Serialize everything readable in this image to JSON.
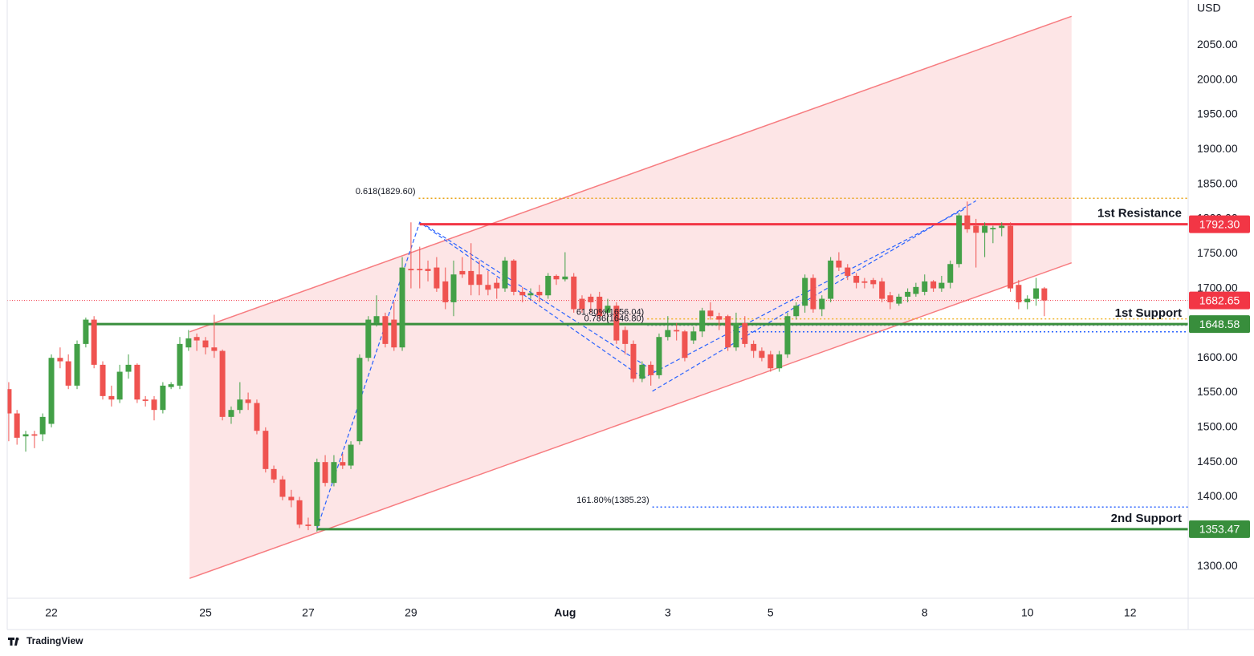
{
  "brand": "TradingView",
  "chart_data": {
    "type": "candlestick",
    "currency": "USD",
    "x": [
      21.17,
      21.33,
      21.5,
      21.67,
      21.83,
      22,
      22.17,
      22.33,
      22.5,
      22.67,
      22.83,
      23,
      23.17,
      23.33,
      23.5,
      23.67,
      23.83,
      24,
      24.17,
      24.33,
      24.5,
      24.67,
      24.83,
      25,
      25.17,
      25.33,
      25.5,
      25.67,
      25.83,
      26,
      26.17,
      26.33,
      26.5,
      26.67,
      26.83,
      27,
      27.17,
      27.33,
      27.5,
      27.67,
      27.83,
      28,
      28.17,
      28.33,
      28.5,
      28.67,
      28.83,
      29,
      29.17,
      29.33,
      29.5,
      29.67,
      29.83,
      30,
      30.17,
      30.33,
      30.5,
      30.67,
      30.83,
      31,
      31.17,
      31.33,
      31.5,
      31.67,
      31.83,
      32,
      32.17,
      32.33,
      32.5,
      32.67,
      32.83,
      33,
      33.17,
      33.33,
      33.5,
      33.67,
      33.83,
      34,
      34.17,
      34.33,
      34.5,
      34.67,
      34.83,
      35,
      35.17,
      35.33,
      35.5,
      35.67,
      35.83,
      36,
      36.17,
      36.33,
      36.5,
      36.67,
      36.83,
      37,
      37.17,
      37.33,
      37.5,
      37.67,
      37.83,
      38,
      38.17,
      38.33,
      38.5,
      38.67,
      38.83,
      39,
      39.17,
      39.33,
      39.5,
      39.67,
      39.83,
      40,
      40.17,
      40.33,
      40.5,
      40.67,
      40.83,
      41,
      41.17,
      41.33
    ],
    "open": [
      1555,
      1520,
      1487,
      1490,
      1490,
      1505,
      1600,
      1595,
      1560,
      1620,
      1655,
      1590,
      1545,
      1540,
      1580,
      1590,
      1540,
      1540,
      1525,
      1558,
      1560,
      1615,
      1630,
      1625,
      1615,
      1610,
      1515,
      1525,
      1540,
      1535,
      1495,
      1440,
      1425,
      1400,
      1395,
      1360,
      1358,
      1450,
      1420,
      1450,
      1445,
      1480,
      1600,
      1650,
      1660,
      1655,
      1615,
      1728,
      1728,
      1728,
      1730,
      1710,
      1680,
      1725,
      1725,
      1720,
      1705,
      1708,
      1700,
      1740,
      1695,
      1690,
      1695,
      1690,
      1718,
      1713,
      1717,
      1685,
      1688,
      1688,
      1665,
      1675,
      1640,
      1620,
      1570,
      1590,
      1575,
      1630,
      1640,
      1638,
      1625,
      1638,
      1668,
      1660,
      1660,
      1615,
      1650,
      1620,
      1610,
      1605,
      1585,
      1605,
      1660,
      1675,
      1715,
      1670,
      1685,
      1740,
      1730,
      1718,
      1710,
      1712,
      1710,
      1690,
      1678,
      1688,
      1692,
      1695,
      1710,
      1700,
      1708,
      1735,
      1805,
      1790,
      1780,
      1785,
      1787,
      1790,
      1705,
      1680,
      1685,
      1700
    ],
    "high": [
      1565,
      1525,
      1495,
      1495,
      1520,
      1605,
      1615,
      1605,
      1625,
      1658,
      1660,
      1595,
      1560,
      1590,
      1605,
      1592,
      1545,
      1545,
      1565,
      1565,
      1630,
      1640,
      1635,
      1630,
      1662,
      1612,
      1530,
      1565,
      1550,
      1540,
      1500,
      1445,
      1430,
      1410,
      1400,
      1370,
      1455,
      1460,
      1460,
      1462,
      1480,
      1605,
      1660,
      1690,
      1665,
      1680,
      1745,
      1795,
      1760,
      1740,
      1745,
      1730,
      1740,
      1745,
      1765,
      1740,
      1725,
      1715,
      1745,
      1742,
      1702,
      1700,
      1705,
      1722,
      1720,
      1752,
      1722,
      1690,
      1692,
      1695,
      1685,
      1680,
      1645,
      1625,
      1595,
      1595,
      1635,
      1660,
      1650,
      1640,
      1645,
      1672,
      1680,
      1665,
      1662,
      1665,
      1660,
      1625,
      1615,
      1610,
      1610,
      1665,
      1680,
      1720,
      1720,
      1690,
      1745,
      1752,
      1735,
      1722,
      1715,
      1715,
      1715,
      1695,
      1692,
      1700,
      1708,
      1720,
      1712,
      1718,
      1740,
      1808,
      1825,
      1800,
      1795,
      1790,
      1795,
      1795,
      1712,
      1690,
      1715,
      1702
    ],
    "low": [
      1480,
      1475,
      1465,
      1470,
      1480,
      1500,
      1585,
      1555,
      1555,
      1615,
      1585,
      1540,
      1530,
      1535,
      1570,
      1535,
      1530,
      1510,
      1520,
      1555,
      1555,
      1610,
      1610,
      1605,
      1600,
      1510,
      1505,
      1520,
      1525,
      1490,
      1435,
      1420,
      1395,
      1385,
      1355,
      1352,
      1350,
      1415,
      1415,
      1440,
      1440,
      1475,
      1595,
      1645,
      1615,
      1610,
      1610,
      1700,
      1700,
      1710,
      1695,
      1670,
      1660,
      1715,
      1690,
      1690,
      1690,
      1685,
      1695,
      1690,
      1680,
      1685,
      1680,
      1685,
      1705,
      1710,
      1665,
      1665,
      1665,
      1655,
      1650,
      1620,
      1605,
      1565,
      1565,
      1560,
      1570,
      1625,
      1625,
      1595,
      1620,
      1630,
      1655,
      1640,
      1610,
      1610,
      1615,
      1600,
      1595,
      1580,
      1580,
      1600,
      1655,
      1665,
      1665,
      1660,
      1680,
      1725,
      1712,
      1700,
      1700,
      1700,
      1680,
      1670,
      1675,
      1680,
      1688,
      1690,
      1695,
      1695,
      1700,
      1730,
      1780,
      1730,
      1745,
      1765,
      1775,
      1695,
      1670,
      1670,
      1675,
      1660
    ],
    "close": [
      1520,
      1485,
      1490,
      1488,
      1515,
      1600,
      1595,
      1560,
      1620,
      1655,
      1590,
      1545,
      1540,
      1580,
      1590,
      1540,
      1538,
      1525,
      1560,
      1562,
      1620,
      1628,
      1625,
      1615,
      1610,
      1515,
      1525,
      1540,
      1535,
      1495,
      1440,
      1425,
      1400,
      1395,
      1360,
      1358,
      1450,
      1420,
      1450,
      1445,
      1475,
      1600,
      1655,
      1660,
      1620,
      1615,
      1730,
      1726,
      1726,
      1725,
      1700,
      1680,
      1720,
      1720,
      1705,
      1705,
      1698,
      1700,
      1740,
      1695,
      1690,
      1693,
      1690,
      1718,
      1713,
      1717,
      1670,
      1670,
      1680,
      1660,
      1675,
      1625,
      1620,
      1570,
      1590,
      1575,
      1630,
      1640,
      1638,
      1600,
      1638,
      1668,
      1660,
      1655,
      1615,
      1650,
      1620,
      1610,
      1600,
      1585,
      1605,
      1660,
      1675,
      1715,
      1670,
      1685,
      1740,
      1730,
      1718,
      1708,
      1708,
      1706,
      1685,
      1680,
      1688,
      1695,
      1702,
      1710,
      1700,
      1708,
      1735,
      1805,
      1785,
      1780,
      1790,
      1787,
      1790,
      1700,
      1680,
      1685,
      1700,
      1682.65
    ],
    "up_color": "#43a047",
    "down_color": "#ef5350",
    "xlim": [
      21.14,
      44.13
    ],
    "xticks": [
      22,
      25,
      27,
      29,
      {
        "value": 32,
        "label": "Aug"
      },
      {
        "value": 34,
        "label": "3"
      },
      {
        "value": 36,
        "label": "5"
      },
      {
        "value": 39,
        "label": "8"
      },
      {
        "value": 41,
        "label": "10"
      },
      {
        "value": 43,
        "label": "12"
      }
    ],
    "ylim": [
      1254,
      2115
    ],
    "yticks": [
      {
        "value": 1300,
        "label": "1300.00"
      },
      {
        "value": 1350,
        "label": "1350.00"
      },
      {
        "value": 1400,
        "label": "1400.00"
      },
      {
        "value": 1450,
        "label": "1450.00"
      },
      {
        "value": 1500,
        "label": "1500.00"
      },
      {
        "value": 1550,
        "label": "1550.00"
      },
      {
        "value": 1600,
        "label": "1600.00"
      },
      {
        "value": 1650,
        "label": "1650.00"
      },
      {
        "value": 1700,
        "label": "1700.00"
      },
      {
        "value": 1750,
        "label": "1750.00"
      },
      {
        "value": 1800,
        "label": "1800.00"
      },
      {
        "value": 1850,
        "label": "1850.00"
      },
      {
        "value": 1900,
        "label": "1900.00"
      },
      {
        "value": 1950,
        "label": "1950.00"
      },
      {
        "value": 2000,
        "label": "2000.00"
      },
      {
        "value": 2050,
        "label": "2050.00"
      }
    ],
    "channel": {
      "color": "#f77c80",
      "upper": [
        [
          24.69,
          1637.4
        ],
        [
          41.86,
          2091.6
        ]
      ],
      "lower": [
        [
          24.69,
          1282.6
        ],
        [
          41.86,
          1736.8
        ]
      ]
    },
    "levels": [
      {
        "name": "1st Resistance",
        "value": 1792.3,
        "label": "1792.30",
        "color": "#f23645",
        "start": 29.17
      },
      {
        "name": "1st Support",
        "value": 1648.58,
        "label": "1648.58",
        "color": "#388e3c",
        "start": 22.67
      },
      {
        "name": "2nd Support",
        "value": 1353.47,
        "label": "1353.47",
        "color": "#388e3c",
        "start": 27.17
      }
    ],
    "last_price": {
      "value": 1682.65,
      "label": "1682.65",
      "color": "#f23645"
    },
    "fib_levels": [
      {
        "label": "0.618(1829.60)",
        "value": 1829.6,
        "color": "#e8a317",
        "start": 29.15
      },
      {
        "label": "61.80%(1656.04)",
        "value": 1656.04,
        "color": "#f0b429",
        "start": 33.6
      },
      {
        "label": "0.786(1646.80)",
        "value": 1646.8,
        "color": "#8a94a6",
        "start": 33.6
      },
      {
        "label": "161.80%(1385.23)",
        "value": 1385.23,
        "color": "#2962ff",
        "start": 33.7
      },
      {
        "value": 1637.4,
        "color": "#2962ff",
        "start": 35.3
      }
    ],
    "patterns": [
      {
        "color": "#2962ff",
        "points": [
          [
            27.17,
            1354
          ],
          [
            29.17,
            1795
          ],
          [
            33.5,
            1572
          ]
        ]
      },
      {
        "color": "#2962ff",
        "points": [
          [
            29.3,
            1790
          ],
          [
            33.75,
            1580
          ]
        ]
      },
      {
        "color": "#2962ff",
        "points": [
          [
            33.5,
            1570
          ],
          [
            39.8,
            1815
          ]
        ]
      },
      {
        "color": "#2962ff",
        "points": [
          [
            33.7,
            1552
          ],
          [
            40,
            1826
          ]
        ]
      }
    ]
  }
}
